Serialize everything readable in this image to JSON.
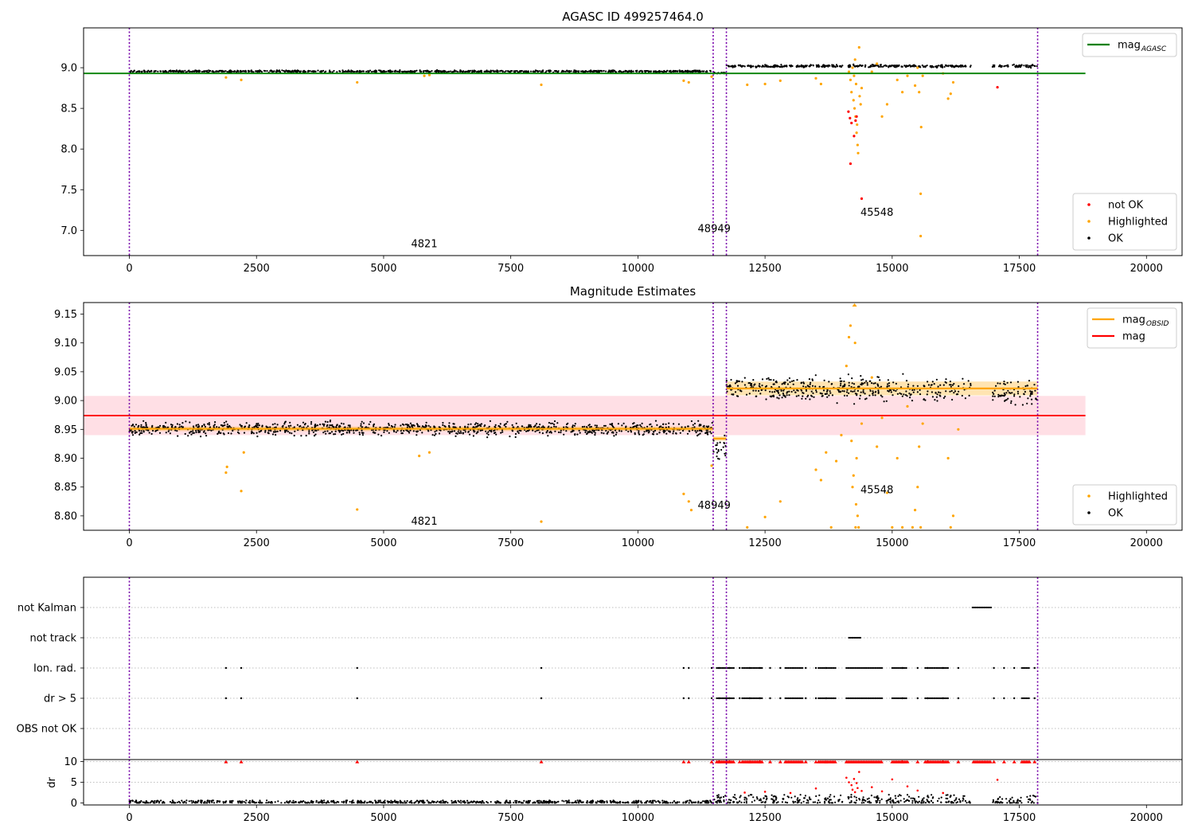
{
  "colors": {
    "ok": "#000000",
    "highlighted": "#ffa500",
    "not_ok": "#ff0000",
    "agasc_mag_line": "#008000",
    "obsid_mag_line": "#ffa500",
    "mean_mag_line": "#ff0000",
    "mean_mag_band": "#ffc0cb",
    "obsid_divider": "#7700aa",
    "flag_ok": "#000000",
    "dr_capped": "#ff0000"
  },
  "chart_data": [
    {
      "id": "agasc",
      "type": "scatter",
      "title": "AGASC ID 499257464.0",
      "xlim": [
        -900,
        20700
      ],
      "ylim": [
        6.69,
        9.49
      ],
      "x_ticks": [
        0,
        2500,
        5000,
        7500,
        10000,
        12500,
        15000,
        17500,
        20000
      ],
      "y_ticks": [
        7.0,
        7.5,
        8.0,
        8.5,
        9.0
      ],
      "y_tick_labels": [
        "7.0",
        "7.5",
        "8.0",
        "8.5",
        "9.0"
      ],
      "grid": false,
      "legends": [
        {
          "placement": "upper-right",
          "entries": [
            {
              "kind": "line",
              "color": "#008000",
              "label": "mag",
              "sub": "AGASC"
            }
          ]
        },
        {
          "placement": "lower-right",
          "entries": [
            {
              "kind": "dot",
              "color": "#ff0000",
              "label": "not OK"
            },
            {
              "kind": "dot",
              "color": "#ffa500",
              "label": "Highlighted"
            },
            {
              "kind": "dot",
              "color": "#000000",
              "label": "OK"
            }
          ]
        }
      ],
      "obsid_boundaries": [
        0,
        11480,
        11740,
        17860
      ],
      "obsid_labels": [
        {
          "x": 5800,
          "y": 6.83,
          "text": "4821"
        },
        {
          "x": 11500,
          "y": 7.02,
          "text": "48949"
        },
        {
          "x": 14700,
          "y": 7.22,
          "text": "45548"
        }
      ],
      "reference_line": {
        "name": "mag_AGASC",
        "y": 8.93,
        "x": [
          -900,
          18800
        ]
      },
      "ok_bands": [
        {
          "x": [
            0,
            11480
          ],
          "center": 8.955,
          "width": 0.03
        },
        {
          "x": [
            11480,
            11740
          ],
          "center": 8.935,
          "width": 0.03
        },
        {
          "x": [
            11740,
            16550
          ],
          "center": 9.02,
          "width": 0.04
        },
        {
          "x": [
            16970,
            17860
          ],
          "center": 9.02,
          "width": 0.04
        }
      ],
      "highlighted_points": [
        [
          1900,
          8.88
        ],
        [
          2200,
          8.85
        ],
        [
          4480,
          8.82
        ],
        [
          5800,
          8.9
        ],
        [
          5900,
          8.91
        ],
        [
          8100,
          8.79
        ],
        [
          10900,
          8.84
        ],
        [
          11000,
          8.82
        ],
        [
          11450,
          8.89
        ],
        [
          12150,
          8.79
        ],
        [
          12500,
          8.8
        ],
        [
          12800,
          8.84
        ],
        [
          13500,
          8.87
        ],
        [
          13600,
          8.8
        ],
        [
          14150,
          8.95
        ],
        [
          14180,
          8.85
        ],
        [
          14200,
          8.7
        ],
        [
          14220,
          9.0
        ],
        [
          14240,
          8.6
        ],
        [
          14250,
          8.9
        ],
        [
          14260,
          8.5
        ],
        [
          14270,
          9.1
        ],
        [
          14280,
          8.4
        ],
        [
          14290,
          8.8
        ],
        [
          14300,
          8.2
        ],
        [
          14310,
          8.3
        ],
        [
          14320,
          8.05
        ],
        [
          14330,
          7.95
        ],
        [
          14350,
          9.25
        ],
        [
          14360,
          8.65
        ],
        [
          14380,
          8.55
        ],
        [
          14400,
          8.75
        ],
        [
          14600,
          8.95
        ],
        [
          14700,
          9.05
        ],
        [
          14800,
          8.4
        ],
        [
          14900,
          8.55
        ],
        [
          15100,
          8.85
        ],
        [
          15200,
          8.7
        ],
        [
          15300,
          8.9
        ],
        [
          15450,
          8.78
        ],
        [
          15500,
          9.0
        ],
        [
          15530,
          8.7
        ],
        [
          15560,
          7.45
        ],
        [
          15560,
          6.93
        ],
        [
          15570,
          8.27
        ],
        [
          15600,
          8.9
        ],
        [
          16100,
          8.62
        ],
        [
          16150,
          8.68
        ],
        [
          16200,
          8.82
        ],
        [
          16000,
          8.93
        ]
      ],
      "not_ok_points": [
        [
          14140,
          8.46
        ],
        [
          14170,
          8.38
        ],
        [
          14180,
          7.82
        ],
        [
          14200,
          8.32
        ],
        [
          14250,
          8.16
        ],
        [
          14280,
          8.35
        ],
        [
          14300,
          8.4
        ],
        [
          14400,
          7.39
        ],
        [
          17070,
          8.76
        ]
      ]
    },
    {
      "id": "estimates",
      "type": "scatter",
      "title": "Magnitude Estimates",
      "xlim": [
        -900,
        20700
      ],
      "ylim": [
        8.775,
        9.17
      ],
      "x_ticks": [
        0,
        2500,
        5000,
        7500,
        10000,
        12500,
        15000,
        17500,
        20000
      ],
      "y_ticks": [
        8.8,
        8.85,
        8.9,
        8.95,
        9.0,
        9.05,
        9.1,
        9.15
      ],
      "y_tick_labels": [
        "8.80",
        "8.85",
        "8.90",
        "8.95",
        "9.00",
        "9.05",
        "9.10",
        "9.15"
      ],
      "grid": false,
      "legends": [
        {
          "placement": "upper-right",
          "entries": [
            {
              "kind": "line",
              "color": "#ffa500",
              "label": "mag",
              "sub": "OBSID"
            },
            {
              "kind": "line",
              "color": "#ff0000",
              "label": "mag"
            }
          ]
        },
        {
          "placement": "lower-right",
          "entries": [
            {
              "kind": "dot",
              "color": "#ffa500",
              "label": "Highlighted"
            },
            {
              "kind": "dot",
              "color": "#000000",
              "label": "OK"
            }
          ]
        }
      ],
      "obsid_boundaries": [
        0,
        11480,
        11740,
        17860
      ],
      "obsid_labels": [
        {
          "x": 5800,
          "y": 8.79,
          "text": "4821"
        },
        {
          "x": 11500,
          "y": 8.818,
          "text": "48949"
        },
        {
          "x": 14700,
          "y": 8.845,
          "text": "45548"
        }
      ],
      "mean_mag": {
        "y": 8.974,
        "band": [
          8.94,
          9.008
        ],
        "x": [
          -900,
          18800
        ]
      },
      "obsid_mags": [
        {
          "x": [
            0,
            11480
          ],
          "y": 8.951,
          "err": 0.004
        },
        {
          "x": [
            11480,
            11740
          ],
          "y": 8.934,
          "err": 0.004
        },
        {
          "x": [
            11740,
            17860
          ],
          "y": 9.021,
          "err": 0.012
        }
      ],
      "ok_bands": [
        {
          "x": [
            0,
            11480
          ],
          "center": 8.951,
          "width": 0.028
        },
        {
          "x": [
            11480,
            11740
          ],
          "center": 8.915,
          "width": 0.05
        },
        {
          "x": [
            11740,
            16550
          ],
          "center": 9.02,
          "width": 0.05
        },
        {
          "x": [
            16970,
            17860
          ],
          "center": 9.015,
          "width": 0.05
        }
      ],
      "highlighted_points": [
        [
          1900,
          8.875
        ],
        [
          1920,
          8.885
        ],
        [
          2200,
          8.843
        ],
        [
          2250,
          8.91
        ],
        [
          4480,
          8.811
        ],
        [
          5700,
          8.904
        ],
        [
          5900,
          8.91
        ],
        [
          8100,
          8.79
        ],
        [
          10900,
          8.838
        ],
        [
          11000,
          8.825
        ],
        [
          11050,
          8.81
        ],
        [
          11450,
          8.887
        ],
        [
          12150,
          8.78
        ],
        [
          12500,
          8.798
        ],
        [
          12800,
          8.825
        ],
        [
          13500,
          8.88
        ],
        [
          13600,
          8.862
        ],
        [
          13700,
          8.91
        ],
        [
          13800,
          8.78
        ],
        [
          13900,
          8.895
        ],
        [
          14000,
          8.94
        ],
        [
          14100,
          9.06
        ],
        [
          14150,
          9.11
        ],
        [
          14180,
          9.13
        ],
        [
          14200,
          8.93
        ],
        [
          14220,
          8.85
        ],
        [
          14240,
          8.87
        ],
        [
          14260,
          9.17
        ],
        [
          14270,
          9.1
        ],
        [
          14280,
          8.78
        ],
        [
          14290,
          8.82
        ],
        [
          14300,
          8.9
        ],
        [
          14320,
          8.8
        ],
        [
          14340,
          8.78
        ],
        [
          14400,
          8.96
        ],
        [
          14600,
          9.04
        ],
        [
          14700,
          8.92
        ],
        [
          14800,
          8.97
        ],
        [
          14900,
          8.84
        ],
        [
          15000,
          8.78
        ],
        [
          15100,
          8.9
        ],
        [
          15200,
          8.78
        ],
        [
          15300,
          8.99
        ],
        [
          15400,
          8.78
        ],
        [
          15450,
          8.81
        ],
        [
          15500,
          8.85
        ],
        [
          15530,
          8.92
        ],
        [
          15560,
          8.78
        ],
        [
          15600,
          8.96
        ],
        [
          16100,
          8.9
        ],
        [
          16150,
          8.78
        ],
        [
          16200,
          8.8
        ],
        [
          16300,
          8.95
        ]
      ]
    },
    {
      "id": "flags",
      "type": "scatter",
      "title": "",
      "xlim": [
        -900,
        20700
      ],
      "categories": [
        "not Kalman",
        "not track",
        "Ion. rad.",
        "dr > 5",
        "OBS not OK"
      ],
      "obsid_boundaries": [
        0,
        11480,
        11740,
        17860
      ],
      "flag_points": {
        "not Kalman": {
          "x_ranges": [
            [
              16580,
              16950
            ]
          ]
        },
        "not track": {
          "x_ranges": [
            [
              14150,
              14400
            ]
          ]
        },
        "Ion. rad.": {
          "x": [
            1900,
            2200,
            4480,
            8100,
            10900,
            11000,
            11450,
            11600,
            11800,
            12000,
            12200,
            12400,
            12600,
            12800,
            13300,
            13500,
            13700,
            15200,
            15500,
            15700,
            16000,
            16300,
            17000,
            17200,
            17400,
            17800
          ],
          "x_ranges": [
            [
              11550,
              11900
            ],
            [
              12050,
              12450
            ],
            [
              12900,
              13250
            ],
            [
              13550,
              13900
            ],
            [
              14100,
              14800
            ],
            [
              15000,
              15300
            ],
            [
              15650,
              16100
            ],
            [
              17550,
              17700
            ]
          ]
        },
        "dr > 5": {
          "x": [
            1900,
            2200,
            4480,
            8100,
            10900,
            11000,
            11450,
            11600,
            11800,
            12000,
            12200,
            12400,
            12600,
            12800,
            13300,
            13500,
            13700,
            15200,
            15500,
            15700,
            16000,
            16300,
            17000,
            17200,
            17400,
            17800
          ],
          "x_ranges": [
            [
              11550,
              11900
            ],
            [
              12050,
              12450
            ],
            [
              12900,
              13250
            ],
            [
              13550,
              13900
            ],
            [
              14100,
              14800
            ],
            [
              15000,
              15300
            ],
            [
              15650,
              16100
            ],
            [
              17550,
              17700
            ]
          ]
        },
        "OBS not OK": {
          "x": []
        }
      }
    },
    {
      "id": "dr",
      "type": "scatter",
      "title": "",
      "ylabel": "dr",
      "xlim": [
        -900,
        20700
      ],
      "ylim": [
        -0.5,
        10.5
      ],
      "x_ticks": [
        0,
        2500,
        5000,
        7500,
        10000,
        12500,
        15000,
        17500,
        20000
      ],
      "y_ticks": [
        0,
        5,
        10
      ],
      "y_tick_labels": [
        "0",
        "5",
        "10"
      ],
      "obsid_boundaries": [
        0,
        11480,
        11740,
        17860
      ],
      "ok_bands": [
        {
          "x": [
            0,
            11480
          ],
          "lo": 0,
          "hi": 0.6
        },
        {
          "x": [
            11480,
            16550
          ],
          "lo": 0,
          "hi": 2.0
        },
        {
          "x": [
            16970,
            17860
          ],
          "lo": 0,
          "hi": 1.8
        }
      ],
      "capped_points_x": [
        1900,
        2200,
        4480,
        8100,
        10900,
        11000,
        11450,
        11600,
        11800,
        12000,
        12200,
        12400,
        12600,
        12800,
        13300,
        13500,
        13700,
        15200,
        15500,
        15700,
        16000,
        16300,
        17000,
        17200,
        17400,
        17800
      ],
      "capped_ranges": [
        [
          11550,
          11900
        ],
        [
          12050,
          12450
        ],
        [
          12900,
          13250
        ],
        [
          13550,
          13900
        ],
        [
          14100,
          14800
        ],
        [
          15000,
          15300
        ],
        [
          15650,
          16100
        ],
        [
          16600,
          16950
        ],
        [
          17550,
          17700
        ]
      ],
      "scatter_points": [
        [
          12100,
          2.5
        ],
        [
          12500,
          2.7
        ],
        [
          13000,
          2.4
        ],
        [
          13500,
          3.5
        ],
        [
          14100,
          6.1
        ],
        [
          14150,
          5.0
        ],
        [
          14200,
          4.3
        ],
        [
          14220,
          3.2
        ],
        [
          14250,
          5.8
        ],
        [
          14270,
          2.6
        ],
        [
          14300,
          4.8
        ],
        [
          14320,
          3.6
        ],
        [
          14350,
          7.5
        ],
        [
          14400,
          2.9
        ],
        [
          14600,
          3.8
        ],
        [
          14800,
          2.8
        ],
        [
          15000,
          5.7
        ],
        [
          15300,
          4.0
        ],
        [
          15500,
          3.0
        ],
        [
          16000,
          2.4
        ],
        [
          17070,
          5.6
        ]
      ]
    }
  ]
}
